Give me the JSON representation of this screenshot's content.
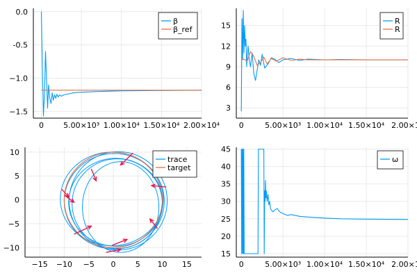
{
  "colors": {
    "blue": "#009AFA",
    "red": "#E26F46",
    "arrow": "#E8184B",
    "grid": "#E9E9E9"
  },
  "chart_data": [
    {
      "type": "line",
      "panel": "top-left",
      "xlim": [
        -1000,
        20000
      ],
      "ylim": [
        -1.6,
        0.05
      ],
      "xticks": [
        {
          "v": 0,
          "label": "0"
        },
        {
          "v": 5000,
          "label": "5.00×10³"
        },
        {
          "v": 10000,
          "label": "1.00×10⁴"
        },
        {
          "v": 15000,
          "label": "1.50×10⁴"
        },
        {
          "v": 20000,
          "label": "2.00×10⁴"
        }
      ],
      "yticks": [
        {
          "v": 0,
          "label": "0.0"
        },
        {
          "v": -0.5,
          "label": "-0.5"
        },
        {
          "v": -1.0,
          "label": "−1.0"
        },
        {
          "v": -1.5,
          "label": "−1.5"
        }
      ],
      "legend": "top-right",
      "series": [
        {
          "name": "β",
          "color": "#009AFA",
          "x": [
            0,
            120,
            260,
            400,
            520,
            640,
            780,
            900,
            1050,
            1200,
            1350,
            1500,
            1650,
            1800,
            1950,
            2100,
            2300,
            2500,
            2800,
            3200,
            4000,
            5000,
            7000,
            10000,
            14000,
            20000
          ],
          "y": [
            0.0,
            -0.8,
            -1.57,
            -1.2,
            -0.6,
            -1.0,
            -1.45,
            -1.1,
            -1.3,
            -1.38,
            -1.22,
            -1.33,
            -1.25,
            -1.3,
            -1.24,
            -1.28,
            -1.25,
            -1.27,
            -1.25,
            -1.24,
            -1.22,
            -1.21,
            -1.2,
            -1.19,
            -1.185,
            -1.18
          ]
        },
        {
          "name": "β_ref",
          "color": "#E26F46",
          "x": [
            0,
            20000
          ],
          "y": [
            -1.18,
            -1.18
          ]
        }
      ]
    },
    {
      "type": "line",
      "panel": "top-right",
      "xlim": [
        -600,
        20000
      ],
      "ylim": [
        1.5,
        17.5
      ],
      "xticks": [
        {
          "v": 0,
          "label": "0"
        },
        {
          "v": 5000,
          "label": "5.00×10³"
        },
        {
          "v": 10000,
          "label": "1.00×10⁴"
        },
        {
          "v": 15000,
          "label": "1.50×10⁴"
        },
        {
          "v": 20000,
          "label": "2.00×10"
        }
      ],
      "yticks": [
        {
          "v": 3,
          "label": "3"
        },
        {
          "v": 6,
          "label": "6"
        },
        {
          "v": 9,
          "label": "9"
        },
        {
          "v": 12,
          "label": "12"
        },
        {
          "v": 15,
          "label": "15"
        }
      ],
      "legend": "top-right",
      "series": [
        {
          "name": "R",
          "color": "#009AFA",
          "x": [
            0,
            80,
            160,
            240,
            320,
            400,
            480,
            560,
            640,
            720,
            820,
            950,
            1100,
            1300,
            1500,
            1700,
            1900,
            2100,
            2300,
            2500,
            2800,
            3200,
            3600,
            4000,
            4500,
            5000,
            6000,
            7000,
            8000,
            10000,
            12000,
            15000,
            20000
          ],
          "y": [
            2.5,
            16.0,
            10.0,
            17.2,
            11.0,
            15.0,
            12.0,
            13.0,
            9.0,
            10.5,
            12.0,
            10.0,
            9.0,
            11.0,
            8.0,
            7.0,
            8.5,
            10.0,
            9.2,
            10.8,
            8.8,
            9.4,
            10.3,
            10.1,
            9.6,
            10.0,
            10.2,
            9.9,
            10.1,
            10.0,
            10.05,
            10.0,
            10.0
          ]
        },
        {
          "name": "R",
          "color": "#E26F46",
          "x": [
            0,
            300,
            700,
            1100,
            1500,
            1900,
            2300,
            2700,
            3100,
            3600,
            4200,
            5000,
            6000,
            7000,
            8000,
            10000,
            12000,
            15000,
            20000
          ],
          "y": [
            10.0,
            10.1,
            9.8,
            11.2,
            10.5,
            9.2,
            9.6,
            10.4,
            9.4,
            10.2,
            9.8,
            10.3,
            9.9,
            10.1,
            10.0,
            10.0,
            10.0,
            10.0,
            10.0
          ]
        }
      ]
    },
    {
      "type": "line",
      "panel": "bottom-left",
      "xlim": [
        -18,
        18
      ],
      "ylim": [
        -12,
        11
      ],
      "xticks": [
        {
          "v": -15,
          "label": "−15"
        },
        {
          "v": -10,
          "label": "−10"
        },
        {
          "v": -5,
          "label": "−5"
        },
        {
          "v": 0,
          "label": "0"
        },
        {
          "v": 5,
          "label": "5"
        },
        {
          "v": 10,
          "label": "10"
        },
        {
          "v": 15,
          "label": "15"
        }
      ],
      "yticks": [
        {
          "v": 10,
          "label": "10"
        },
        {
          "v": 5,
          "label": "5"
        },
        {
          "v": 0,
          "label": "0"
        },
        {
          "v": -5,
          "label": "−5"
        },
        {
          "v": -10,
          "label": "−10"
        }
      ],
      "legend": "top-right",
      "series": [
        {
          "name": "trace",
          "color": "#009AFA",
          "loops": [
            {
              "cx": 0.5,
              "cy": -0.5,
              "rx": 9.6,
              "ry": 9.2
            },
            {
              "cx": 0.2,
              "cy": -0.3,
              "rx": 10.2,
              "ry": 10.0
            },
            {
              "cx": 0.8,
              "cy": -0.8,
              "rx": 9.2,
              "ry": 9.4
            },
            {
              "cx": -0.3,
              "cy": 0.2,
              "rx": 10.5,
              "ry": 9.8
            },
            {
              "cx": 1.0,
              "cy": -0.2,
              "rx": 10.0,
              "ry": 10.3
            },
            {
              "cx": 1.5,
              "cy": -1.5,
              "rx": 7.8,
              "ry": 9.5
            }
          ]
        },
        {
          "name": "target",
          "color": "#E26F46",
          "circle": {
            "cx": 0,
            "cy": 0,
            "r": 10
          }
        }
      ],
      "arrows": [
        {
          "x": -4.5,
          "y": 6.5,
          "dx": 1.0,
          "dy": -2.5
        },
        {
          "x": 4.0,
          "y": 9.8,
          "dx": -2.5,
          "dy": -2.5
        },
        {
          "x": 10.8,
          "y": 2.7,
          "dx": -3.0,
          "dy": 0.3
        },
        {
          "x": 9.0,
          "y": -6.0,
          "dx": -1.5,
          "dy": 2.0
        },
        {
          "x": -0.2,
          "y": -9.5,
          "dx": 3.0,
          "dy": 1.2
        },
        {
          "x": -1.5,
          "y": -11.0,
          "dx": 3.0,
          "dy": 0.6
        },
        {
          "x": -8.0,
          "y": -7.2,
          "dx": 3.5,
          "dy": 1.7
        },
        {
          "x": -10.5,
          "y": 2.2,
          "dx": 1.4,
          "dy": -1.6
        },
        {
          "x": -10.0,
          "y": 1.0,
          "dx": 2.0,
          "dy": -1.5
        }
      ]
    },
    {
      "type": "line",
      "panel": "bottom-right",
      "xlim": [
        -600,
        20000
      ],
      "ylim": [
        14,
        45.5
      ],
      "xticks": [
        {
          "v": 0,
          "label": "0"
        },
        {
          "v": 5000,
          "label": "5.00×10³"
        },
        {
          "v": 10000,
          "label": "1.00×10⁴"
        },
        {
          "v": 15000,
          "label": "1.50×10⁴"
        },
        {
          "v": 20000,
          "label": "2.00×10"
        }
      ],
      "yticks": [
        {
          "v": 45,
          "label": "45"
        },
        {
          "v": 40,
          "label": "40"
        },
        {
          "v": 35,
          "label": "35"
        },
        {
          "v": 30,
          "label": "30"
        },
        {
          "v": 25,
          "label": "25"
        },
        {
          "v": 20,
          "label": "20"
        },
        {
          "v": 15,
          "label": "15"
        }
      ],
      "legend": "top-right",
      "series": [
        {
          "name": "ω",
          "color": "#009AFA",
          "x": [
            0,
            50,
            100,
            150,
            200,
            250,
            300,
            350,
            400,
            2000,
            2050,
            2100,
            2700,
            2750,
            2800,
            2850,
            2900,
            2950,
            3000,
            3100,
            3200,
            3300,
            3400,
            3500,
            3600,
            3800,
            4000,
            4300,
            4600,
            5000,
            5500,
            6000,
            7000,
            8000,
            10000,
            12000,
            15000,
            20000
          ],
          "y": [
            45,
            15,
            45,
            15,
            45,
            15,
            45,
            15,
            15,
            15,
            45,
            45,
            45,
            15,
            33,
            30,
            36,
            31,
            33,
            30,
            32,
            29,
            30,
            28,
            27.5,
            27,
            27.5,
            28,
            27,
            26.5,
            26,
            26.2,
            25.7,
            25.5,
            25.2,
            25.0,
            24.9,
            24.8
          ]
        }
      ]
    }
  ]
}
